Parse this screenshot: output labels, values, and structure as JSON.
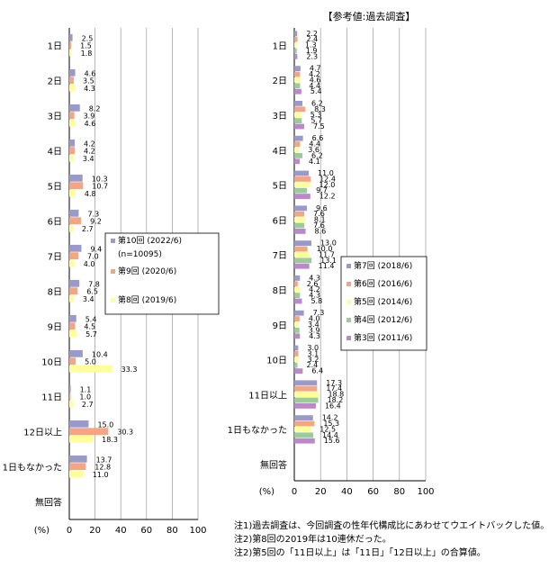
{
  "header": {
    "ref_title": "【参考値:過去調査】"
  },
  "notes": [
    "注1)過去調査は、今回調査の性年代構成比にあわせてウエイトバックした値。",
    "注2)第8回の2019年は10連休だった。",
    "注2)第5回の「11日以上」は「11日」「12日以上」の合算値。"
  ],
  "chart_data": [
    {
      "type": "bar",
      "orientation": "horizontal",
      "unit_label": "(%)",
      "xlim": [
        0,
        100
      ],
      "xticks": [
        "0",
        "20",
        "40",
        "60",
        "80",
        "100"
      ],
      "grid": true,
      "legend_position": "inside-right",
      "categories": [
        "1日",
        "2日",
        "3日",
        "4日",
        "5日",
        "6日",
        "7日",
        "8日",
        "9日",
        "10日",
        "11日",
        "12日以上",
        "1日もなかった",
        "無回答"
      ],
      "series": [
        {
          "name": "第10回 (2022/6)",
          "name_line2": "(n=10095)",
          "color": "#9999cc",
          "values": [
            2.5,
            4.6,
            8.2,
            4.2,
            10.3,
            7.3,
            9.4,
            7.8,
            5.4,
            10.4,
            1.1,
            15.0,
            13.7,
            null
          ]
        },
        {
          "name": "第9回 (2020/6)",
          "color": "#f4a582",
          "values": [
            1.5,
            3.5,
            3.9,
            4.2,
            10.7,
            9.2,
            7.0,
            6.5,
            4.5,
            5.0,
            1.0,
            30.3,
            12.8,
            null
          ]
        },
        {
          "name": "第8回 (2019/6)",
          "color": "#ffff99",
          "values": [
            1.8,
            4.3,
            4.6,
            3.4,
            4.8,
            2.7,
            4.0,
            3.4,
            5.7,
            33.3,
            2.7,
            18.3,
            11.0,
            null
          ]
        }
      ],
      "value_labels": [
        [
          "2.5",
          "1.5",
          "1.8"
        ],
        [
          "4.6",
          "3.5",
          "4.3"
        ],
        [
          "8.2",
          "3.9",
          "4.6"
        ],
        [
          "4.2",
          "4.2",
          "3.4"
        ],
        [
          "10.3",
          "10.7",
          "4.8"
        ],
        [
          "7.3",
          "9.2",
          "2.7"
        ],
        [
          "9.4",
          "7.0",
          "4.0"
        ],
        [
          "7.8",
          "6.5",
          "3.4"
        ],
        [
          "5.4",
          "4.5",
          "5.7"
        ],
        [
          "10.4",
          "5.0",
          "33.3"
        ],
        [
          "1.1",
          "1.0",
          "2.7"
        ],
        [
          "15.0",
          "30.3",
          "18.3"
        ],
        [
          "13.7",
          "12.8",
          "11.0"
        ],
        []
      ]
    },
    {
      "type": "bar",
      "orientation": "horizontal",
      "title": "【参考値:過去調査】",
      "unit_label": "(%)",
      "xlim": [
        0,
        100
      ],
      "xticks": [
        "0",
        "20",
        "40",
        "60",
        "80",
        "100"
      ],
      "grid": true,
      "legend_position": "inside-right",
      "categories": [
        "1日",
        "2日",
        "3日",
        "4日",
        "5日",
        "6日",
        "7日",
        "8日",
        "9日",
        "10日",
        "11日以上",
        "1日もなかった",
        "無回答"
      ],
      "series": [
        {
          "name": "第7回 (2018/6)",
          "color": "#9999cc",
          "values": [
            2.2,
            4.7,
            6.2,
            6.6,
            11.0,
            9.6,
            13.0,
            4.3,
            7.3,
            3.0,
            17.3,
            14.2,
            null
          ]
        },
        {
          "name": "第6回 (2016/6)",
          "color": "#f4a582",
          "values": [
            2.4,
            4.2,
            8.3,
            4.4,
            12.4,
            7.6,
            10.0,
            2.6,
            4.0,
            3.1,
            17.4,
            15.3,
            null
          ]
        },
        {
          "name": "第5回 (2014/6)",
          "color": "#ffff99",
          "values": [
            1.3,
            4.6,
            5.3,
            3.6,
            12.0,
            8.1,
            11.7,
            4.2,
            3.4,
            3.2,
            18.8,
            12.5,
            null
          ]
        },
        {
          "name": "第4回 (2012/6)",
          "color": "#99cc99",
          "values": [
            1.9,
            4.4,
            5.7,
            6.2,
            9.7,
            7.6,
            13.1,
            4.3,
            3.9,
            2.4,
            18.2,
            14.4,
            null
          ]
        },
        {
          "name": "第3回 (2011/6)",
          "color": "#bb88cc",
          "values": [
            2.3,
            5.4,
            7.5,
            4.1,
            12.2,
            8.6,
            11.4,
            5.8,
            4.3,
            6.4,
            16.4,
            15.6,
            null
          ]
        }
      ],
      "value_labels": [
        [
          "2.2",
          "2.4",
          "1.3",
          "1.9",
          "2.3"
        ],
        [
          "4.7",
          "4.2",
          "4.6",
          "4.4",
          "5.4"
        ],
        [
          "6.2",
          "8.3",
          "5.3",
          "5.7",
          "7.5"
        ],
        [
          "6.6",
          "4.4",
          "3.6",
          "6.2",
          "4.1"
        ],
        [
          "11.0",
          "12.4",
          "12.0",
          "9.7",
          "12.2"
        ],
        [
          "9.6",
          "7.6",
          "8.1",
          "7.6",
          "8.6"
        ],
        [
          "13.0",
          "10.0",
          "11.7",
          "13.1",
          "11.4"
        ],
        [
          "4.3",
          "2.6",
          "4.2",
          "4.3",
          "5.8"
        ],
        [
          "7.3",
          "4.0",
          "3.4",
          "3.9",
          "4.3"
        ],
        [
          "3.0",
          "3.1",
          "3.2",
          "2.4",
          "6.4"
        ],
        [
          "17.3",
          "17.4",
          "18.8",
          "18.2",
          "16.4"
        ],
        [
          "14.2",
          "15.3",
          "12.5",
          "14.4",
          "15.6"
        ],
        []
      ]
    }
  ]
}
